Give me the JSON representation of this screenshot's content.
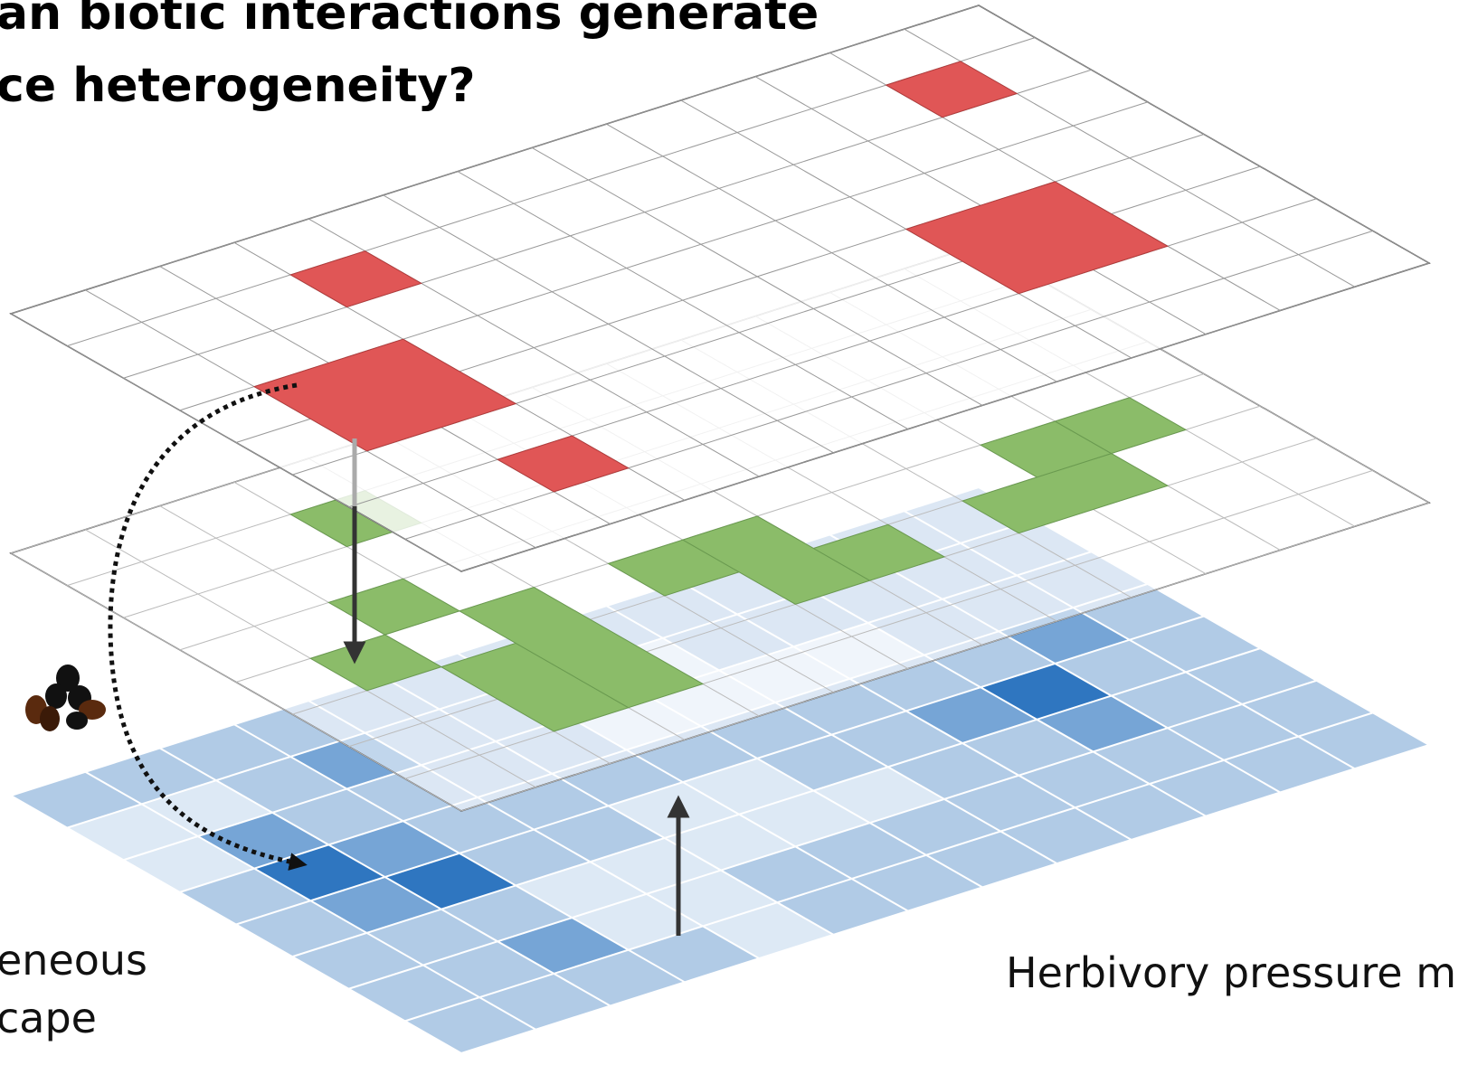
{
  "title_lines": [
    "an biotic interactions generate",
    "ce heterogeneity?"
  ],
  "labels": {
    "left": [
      "eneous",
      "cape"
    ],
    "right": "Herbivory pressure m"
  }
}
